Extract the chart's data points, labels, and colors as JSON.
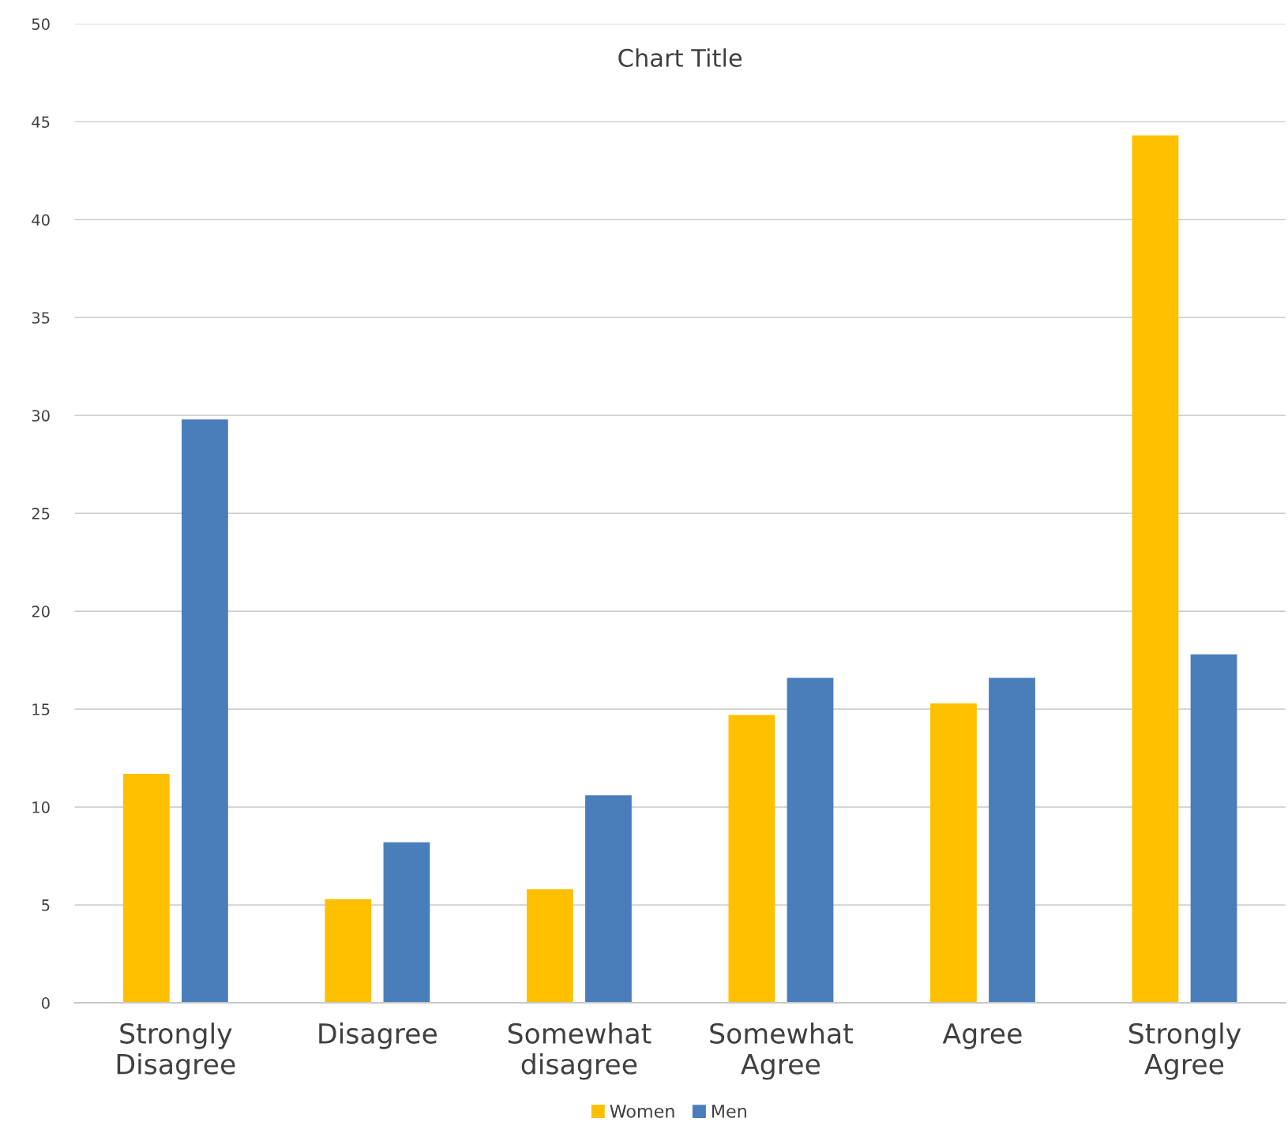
{
  "chart_data": {
    "type": "bar",
    "title": "Chart Title",
    "categories": [
      "Strongly\nDisagree",
      "Disagree",
      "Somewhat\ndisagree",
      "Somewhat\nAgree",
      "Agree",
      "Strongly\nAgree"
    ],
    "series": [
      {
        "name": "Women",
        "color": "#ffc000",
        "values": [
          11.7,
          5.3,
          5.8,
          14.7,
          15.3,
          44.3
        ]
      },
      {
        "name": "Men",
        "color": "#4a7ebb",
        "values": [
          29.8,
          8.2,
          10.6,
          16.6,
          16.6,
          17.8
        ]
      }
    ],
    "ylim": [
      0,
      50
    ],
    "yticks": [
      0,
      5,
      10,
      15,
      20,
      25,
      30,
      35,
      40,
      45,
      50
    ],
    "grid": "y",
    "legend": "bottom"
  }
}
